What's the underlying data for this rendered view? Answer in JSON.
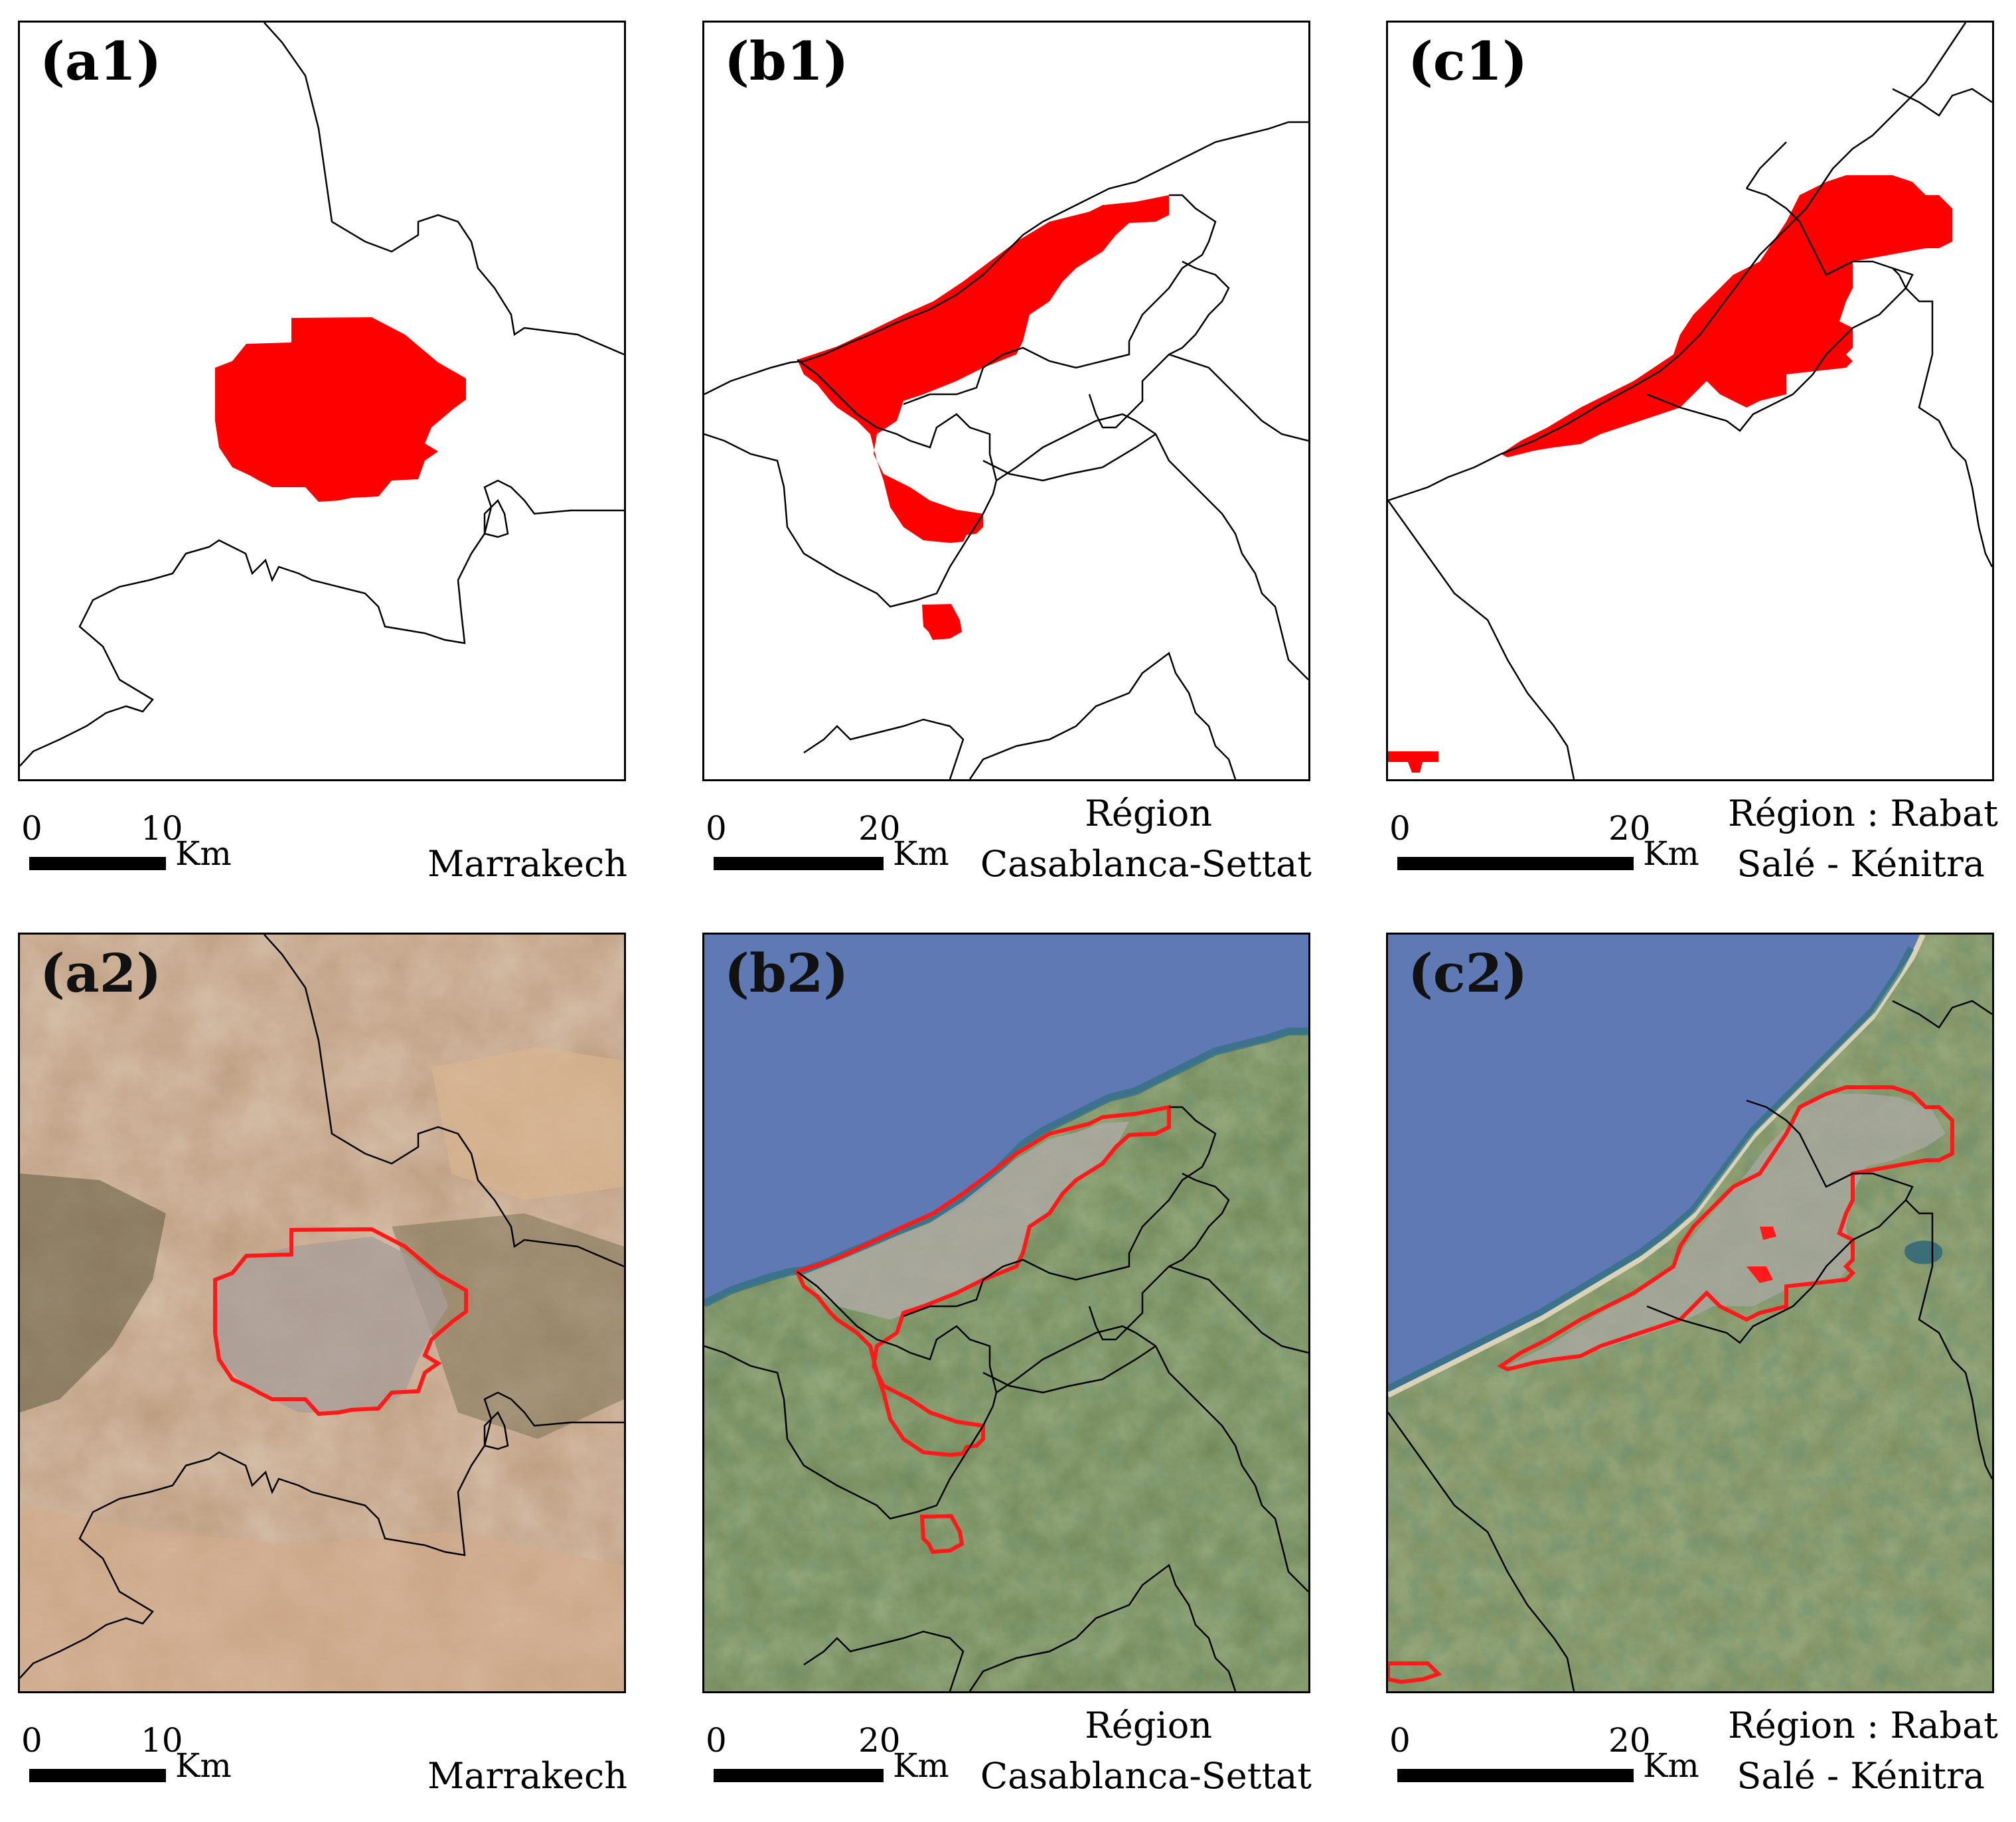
{
  "panels": {
    "a1": {
      "label": "(a1)"
    },
    "b1": {
      "label": "(b1)"
    },
    "c1": {
      "label": "(c1)"
    },
    "a2": {
      "label": "(a2)"
    },
    "b2": {
      "label": "(b2)"
    },
    "c2": {
      "label": "(c2)"
    }
  },
  "scalebars": {
    "a": {
      "zero": "0",
      "distance": "10",
      "unit": "Km"
    },
    "b": {
      "zero": "0",
      "distance": "20",
      "unit": "Km"
    },
    "c": {
      "zero": "0",
      "distance": "20",
      "unit": "Km"
    }
  },
  "regions": {
    "a": {
      "line1": "",
      "line2": "Marrakech"
    },
    "b": {
      "line1": "Région",
      "line2": "Casablanca-Settat"
    },
    "c": {
      "line1": "Région : Rabat",
      "line2": "Salé - Kénitra"
    }
  },
  "colors": {
    "urban_extent": "#ff0000",
    "boundary": "#000000",
    "sea": "#5e79b4",
    "desert": "#b7936f",
    "vegetation": "#5f7a45",
    "urban_fabric": "#a7a29c"
  }
}
